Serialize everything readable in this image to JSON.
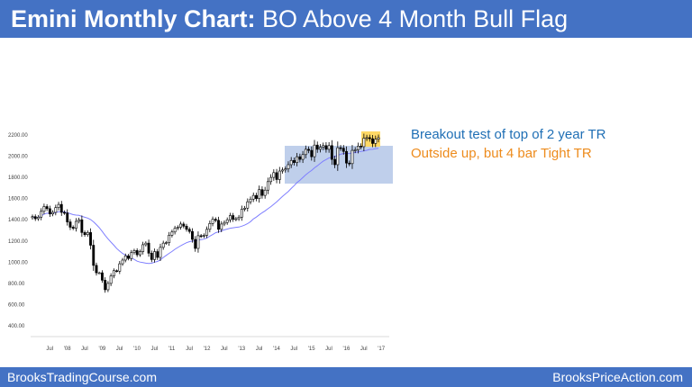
{
  "header": {
    "title_bold": "Emini Monthly Chart:",
    "title_rest": " BO Above 4 Month Bull Flag"
  },
  "footer": {
    "left": "BrooksTradingCourse.com",
    "right": "BrooksPriceAction.com"
  },
  "annotations": {
    "line1": "Breakout test of top of 2 year TR",
    "line2": "Outside up, but 4 bar Tight TR"
  },
  "colors": {
    "band": "#4472c4",
    "annotation1": "#1f6fb5",
    "annotation2": "#ed8b1c",
    "range_box": "#b4c7e7",
    "highlight_box": "#ffd966",
    "moving_average": "#7f7fff"
  },
  "chart_data": {
    "type": "candlestick",
    "ylim": [
      400,
      2250
    ],
    "y_ticks": [
      "400.00",
      "600.00",
      "800.00",
      "1000.00",
      "1200.00",
      "1400.00",
      "1600.00",
      "1800.00",
      "2000.00",
      "2200.00"
    ],
    "x_ticks": [
      "Jul",
      "'08",
      "Jul",
      "'09",
      "Jul",
      "'10",
      "Jul",
      "'11",
      "Jul",
      "'12",
      "Jul",
      "'13",
      "Jul",
      "'14",
      "Jul",
      "'15",
      "Jul",
      "'16",
      "Jul",
      "'17"
    ],
    "start": "2007-01",
    "closes": [
      1430,
      1410,
      1425,
      1480,
      1525,
      1505,
      1455,
      1470,
      1515,
      1545,
      1470,
      1465,
      1380,
      1330,
      1320,
      1385,
      1400,
      1280,
      1260,
      1280,
      1160,
      970,
      900,
      900,
      830,
      740,
      800,
      870,
      920,
      915,
      985,
      1020,
      1060,
      1035,
      1090,
      1110,
      1070,
      1100,
      1165,
      1180,
      1085,
      1025,
      1100,
      1045,
      1140,
      1180,
      1185,
      1255,
      1285,
      1320,
      1330,
      1360,
      1340,
      1310,
      1290,
      1215,
      1130,
      1250,
      1245,
      1255,
      1310,
      1365,
      1405,
      1395,
      1310,
      1360,
      1375,
      1400,
      1440,
      1405,
      1410,
      1425,
      1500,
      1510,
      1570,
      1595,
      1630,
      1600,
      1685,
      1630,
      1680,
      1760,
      1800,
      1845,
      1780,
      1860,
      1870,
      1880,
      1920,
      1960,
      1940,
      1995,
      1970,
      2015,
      2065,
      2055,
      1995,
      2105,
      2065,
      2085,
      2100,
      2065,
      2100,
      1970,
      1920,
      2080,
      2075,
      2045,
      1935,
      1930,
      2055,
      2060,
      2095,
      2090,
      2170,
      2175,
      2165,
      2120,
      2160,
      2175
    ]
  }
}
